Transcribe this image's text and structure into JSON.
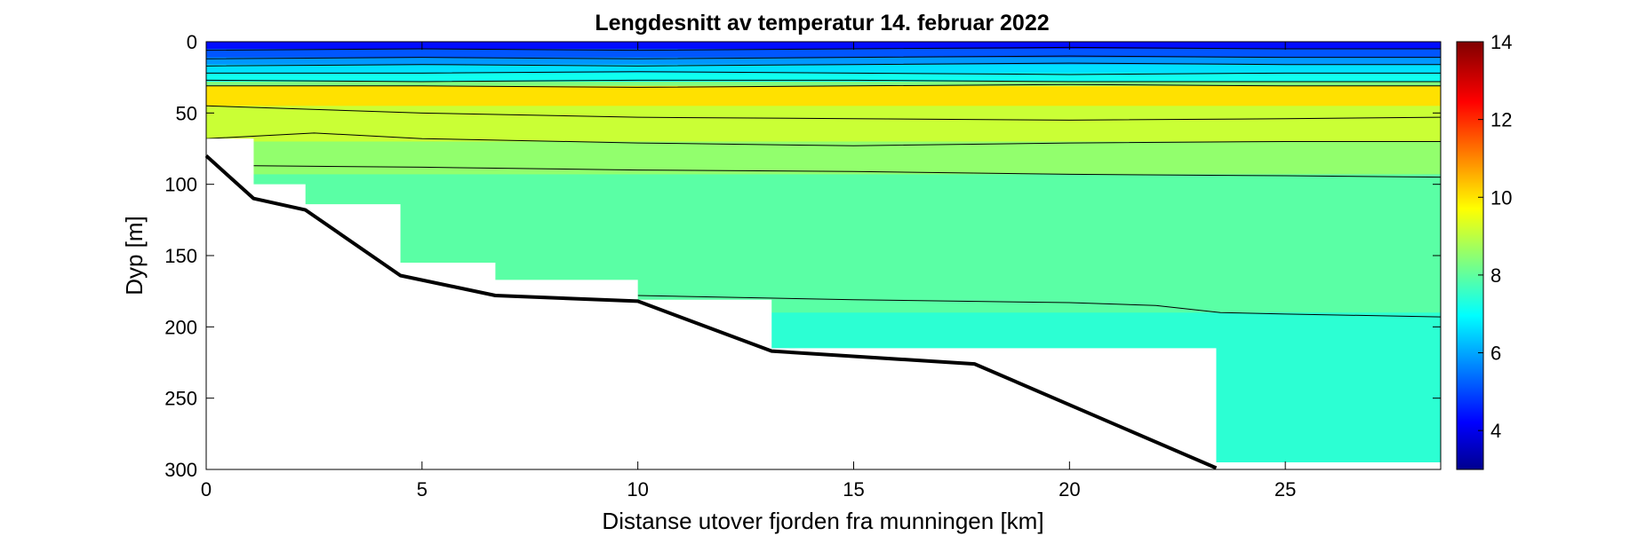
{
  "chart_data": {
    "type": "contour",
    "title": "Lengdesnitt av temperatur 14. februar 2022",
    "xlabel": "Distanse utover fjorden fra munningen [km]",
    "ylabel": "Dyp [m]",
    "xlim": [
      0,
      28.6
    ],
    "ylim": [
      0,
      300
    ],
    "y_reversed": true,
    "grid": false,
    "x_ticks": [
      "0",
      "5",
      "10",
      "15",
      "20",
      "25"
    ],
    "x_tick_values": [
      0,
      5,
      10,
      15,
      20,
      25
    ],
    "y_ticks": [
      "0",
      "50",
      "100",
      "150",
      "200",
      "250",
      "300"
    ],
    "y_tick_values": [
      0,
      50,
      100,
      150,
      200,
      250,
      300
    ],
    "colorbar": {
      "colormap": "jet",
      "range": [
        3,
        14
      ],
      "ticks": [
        "4",
        "6",
        "8",
        "10",
        "12",
        "14"
      ],
      "tick_values": [
        4,
        6,
        8,
        10,
        12,
        14
      ],
      "position": "right"
    },
    "layers": [
      {
        "depth_top": 0,
        "depth_bottom": 5,
        "temperature": 4.5
      },
      {
        "depth_top": 5,
        "depth_bottom": 11,
        "temperature": 5.3
      },
      {
        "depth_top": 11,
        "depth_bottom": 16,
        "temperature": 6.0
      },
      {
        "depth_top": 16,
        "depth_bottom": 22,
        "temperature": 6.8
      },
      {
        "depth_top": 22,
        "depth_bottom": 28,
        "temperature": 7.3
      },
      {
        "depth_top": 28,
        "depth_bottom": 31,
        "temperature": 8.5
      },
      {
        "depth_top": 31,
        "depth_bottom": 45,
        "temperature": 10.2
      },
      {
        "depth_top": 45,
        "depth_bottom": 70,
        "temperature": 9.3
      },
      {
        "depth_top": 70,
        "depth_bottom": 93,
        "temperature": 8.7
      },
      {
        "depth_top": 93,
        "depth_bottom": 190,
        "temperature": 8.1
      },
      {
        "depth_top": 190,
        "depth_bottom": 300,
        "temperature": 7.6
      }
    ],
    "contour_lines": [
      {
        "level": "c1",
        "x": [
          0,
          5,
          10,
          15,
          20,
          25,
          28.6
        ],
        "depth": [
          6,
          5,
          6,
          5,
          4,
          5,
          5
        ]
      },
      {
        "level": "c2",
        "x": [
          0,
          5,
          10,
          15,
          20,
          25,
          28.6
        ],
        "depth": [
          12,
          11,
          12,
          11,
          10,
          11,
          11
        ]
      },
      {
        "level": "c3",
        "x": [
          0,
          5,
          10,
          15,
          20,
          25,
          28.6
        ],
        "depth": [
          17,
          16,
          17,
          16,
          15,
          16,
          16
        ]
      },
      {
        "level": "c4",
        "x": [
          0,
          5,
          10,
          15,
          20,
          25,
          28.6
        ],
        "depth": [
          22,
          22,
          21,
          22,
          23,
          22,
          22
        ]
      },
      {
        "level": "c5",
        "x": [
          0,
          5,
          10,
          15,
          20,
          25,
          28.6
        ],
        "depth": [
          27,
          28,
          27,
          27,
          28,
          28,
          28
        ]
      },
      {
        "level": "c6",
        "x": [
          0,
          5,
          10,
          15,
          20,
          25,
          28.6
        ],
        "depth": [
          31,
          31,
          32,
          31,
          30,
          31,
          31
        ]
      },
      {
        "level": "c7",
        "x": [
          0,
          5,
          10,
          15,
          20,
          25,
          28.6
        ],
        "depth": [
          45,
          50,
          53,
          54,
          55,
          54,
          53
        ]
      },
      {
        "level": "c8",
        "x": [
          0,
          2.5,
          5,
          10,
          15,
          20,
          25,
          28.6
        ],
        "depth": [
          68,
          64,
          68,
          71,
          73,
          71,
          70,
          70
        ]
      },
      {
        "level": "c9",
        "x": [
          1.1,
          5,
          10,
          15,
          20,
          25,
          28.6
        ],
        "depth": [
          87,
          88,
          90,
          91,
          93,
          94,
          95
        ]
      },
      {
        "level": "c10",
        "x": [
          10,
          15,
          20,
          22,
          23.5,
          25,
          28.6
        ],
        "depth": [
          178,
          181,
          183,
          185,
          190,
          191,
          193
        ]
      }
    ],
    "data_mask": [
      [
        0,
        68
      ],
      [
        1.1,
        68
      ],
      [
        1.1,
        100
      ],
      [
        2.3,
        100
      ],
      [
        2.3,
        114
      ],
      [
        4.5,
        114
      ],
      [
        4.5,
        155
      ],
      [
        6.7,
        155
      ],
      [
        6.7,
        167
      ],
      [
        10,
        167
      ],
      [
        10,
        181
      ],
      [
        13.1,
        181
      ],
      [
        13.1,
        215
      ],
      [
        23.4,
        215
      ],
      [
        23.4,
        295
      ],
      [
        28.6,
        295
      ]
    ],
    "bottom_profile": {
      "x": [
        0,
        1.1,
        2.3,
        4.5,
        6.7,
        10,
        13.1,
        17.8,
        23.4
      ],
      "depth": [
        80,
        110,
        118,
        164,
        178,
        182,
        217,
        226,
        299
      ]
    }
  }
}
